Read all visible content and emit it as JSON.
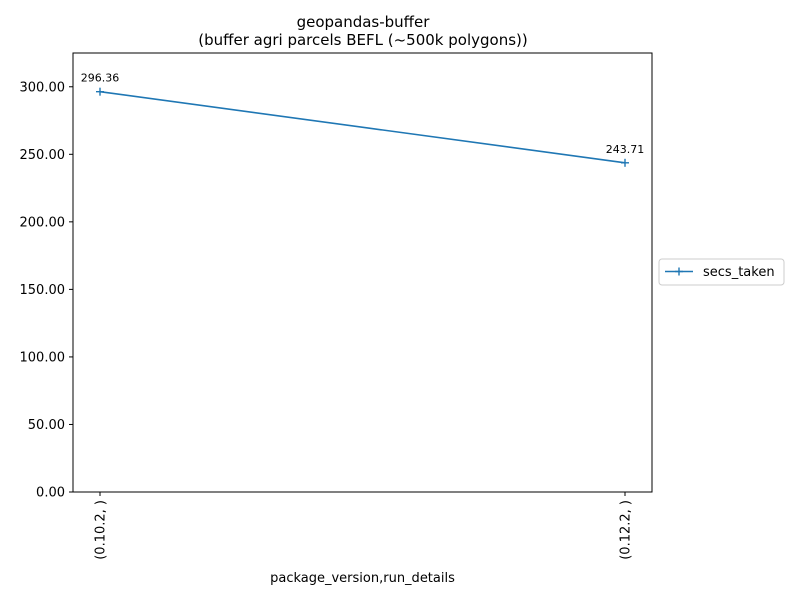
{
  "chart_data": {
    "type": "line",
    "title": "geopandas-buffer",
    "subtitle": "(buffer agri parcels BEFL (~500k polygons))",
    "xlabel": "package_version,run_details",
    "ylabel": "",
    "categories": [
      "(0.10.2, )",
      "(0.12.2, )"
    ],
    "series": [
      {
        "name": "secs_taken",
        "values": [
          296.36,
          243.71
        ],
        "labels": [
          "296.36",
          "243.71"
        ],
        "color": "#1f77b4",
        "marker": "plus"
      }
    ],
    "ylim": [
      0,
      325
    ],
    "yticks": [
      0,
      50,
      100,
      150,
      200,
      250,
      300
    ],
    "ytick_labels": [
      "0.00",
      "50.00",
      "100.00",
      "150.00",
      "200.00",
      "250.00",
      "300.00"
    ],
    "grid": false,
    "legend": "outside-right"
  }
}
